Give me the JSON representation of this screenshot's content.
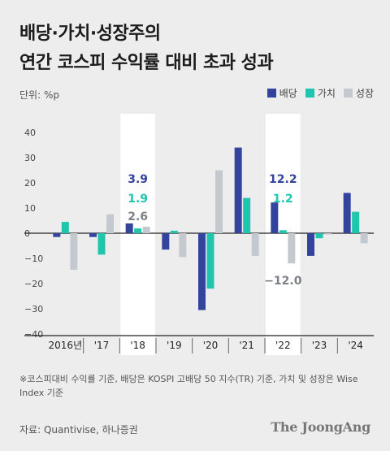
{
  "title_lines": [
    "배당·가치·성장주의",
    "연간 코스피 수익률 대비 초과 성과"
  ],
  "unit_label": "단위: %p",
  "note": "※코스피대비 수익률 기준, 배당은 KOSPI 고배당 50 지수(TR) 기준, 가치 및 성장은 Wise Index 기준",
  "source": "자료: Quantivise, 하나증권",
  "brand": "The JoongAng",
  "colors": {
    "dividend": "#34439c",
    "value": "#1fc6ad",
    "growth": "#c4c9cf",
    "highlight": "#ffffff",
    "axis": "#222222",
    "tick": "#444444"
  },
  "chart_data": {
    "type": "bar",
    "categories": [
      "2016년",
      "'17",
      "'18",
      "'19",
      "'20",
      "'21",
      "'22",
      "'23",
      "'24"
    ],
    "series": [
      {
        "name": "배당",
        "values": [
          -1.5,
          -1.5,
          3.9,
          -6.5,
          -30.5,
          34,
          12.2,
          -9,
          16
        ]
      },
      {
        "name": "가치",
        "values": [
          4.5,
          -8.5,
          1.9,
          1,
          -22,
          14,
          1.2,
          -2,
          8.5
        ]
      },
      {
        "name": "성장",
        "values": [
          -14.5,
          7.5,
          2.6,
          -9.5,
          25,
          -9,
          -12.0,
          -0.5,
          -4
        ]
      }
    ],
    "ylim": [
      -40,
      40
    ],
    "yticks": [
      40,
      30,
      20,
      10,
      0,
      -10,
      -20,
      -30,
      -40
    ],
    "highlight_categories": [
      "'18",
      "'22"
    ],
    "annotations": [
      {
        "category": "'18",
        "series": "배당",
        "text": "3.9"
      },
      {
        "category": "'18",
        "series": "가치",
        "text": "1.9"
      },
      {
        "category": "'18",
        "series": "성장",
        "text": "2.6"
      },
      {
        "category": "'22",
        "series": "배당",
        "text": "12.2"
      },
      {
        "category": "'22",
        "series": "가치",
        "text": "1.2"
      },
      {
        "category": "'22",
        "series": "성장",
        "text": "−12.0"
      }
    ],
    "legend_position": "top-right"
  }
}
